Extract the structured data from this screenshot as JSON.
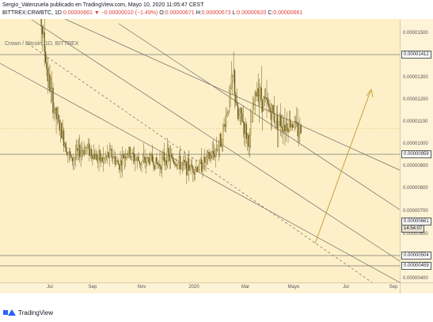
{
  "header": {
    "line1": "Sergio_Valenzuela publicado en TradingView.com, Mayo 10, 2020 11:05:47 CEST",
    "symbol": "BITTREX:CRWBTC, 1D",
    "last": "0.00000661",
    "change": "▼ −0.00000010 (−1.49%)",
    "o_label": "O:",
    "o_value": "0.00000671",
    "h_label": "H:",
    "h_value": "0.00000673",
    "l_label": "L:",
    "l_value": "0.00000620",
    "c_label": "C:",
    "c_value": "0.00000661"
  },
  "legend": {
    "title": "Crown / Bitcoin, 1D, BITTREX"
  },
  "price_axis": {
    "ticks": [
      "0.00001500",
      "0.00001300",
      "0.00001200",
      "0.00001100",
      "0.00001000",
      "0.00000900",
      "0.00000800",
      "0.00000700",
      "0.00000600",
      "0.00000400"
    ],
    "badges": [
      {
        "text": "0.00001412"
      },
      {
        "text": "0.00000959"
      },
      {
        "text": "0.00000661"
      },
      {
        "text": "14:54:07"
      },
      {
        "text": "0.00000504"
      },
      {
        "text": "0.00000459"
      }
    ]
  },
  "time_axis": {
    "ticks": [
      "Jul",
      "Sep",
      "Nov",
      "2020",
      "Mar",
      "Mayo",
      "Jul",
      "Sep"
    ]
  },
  "footer": {
    "brand": "TradingView"
  },
  "chart_data": {
    "type": "candlestick",
    "symbol": "CRWBTC",
    "exchange": "BITTREX",
    "timeframe": "1D",
    "y_range": [
      3.5e-06,
      1.55e-05
    ],
    "horizontal_levels": [
      1.412e-05,
      9.59e-06,
      5.04e-06,
      4.59e-06
    ],
    "last_price": 6.61e-06,
    "colors": {
      "up": "#f2d98a",
      "down": "#6b5a1e",
      "background": "#fdf0c8",
      "trend": "#8a8a8a",
      "arrow": "#c8a040"
    }
  }
}
